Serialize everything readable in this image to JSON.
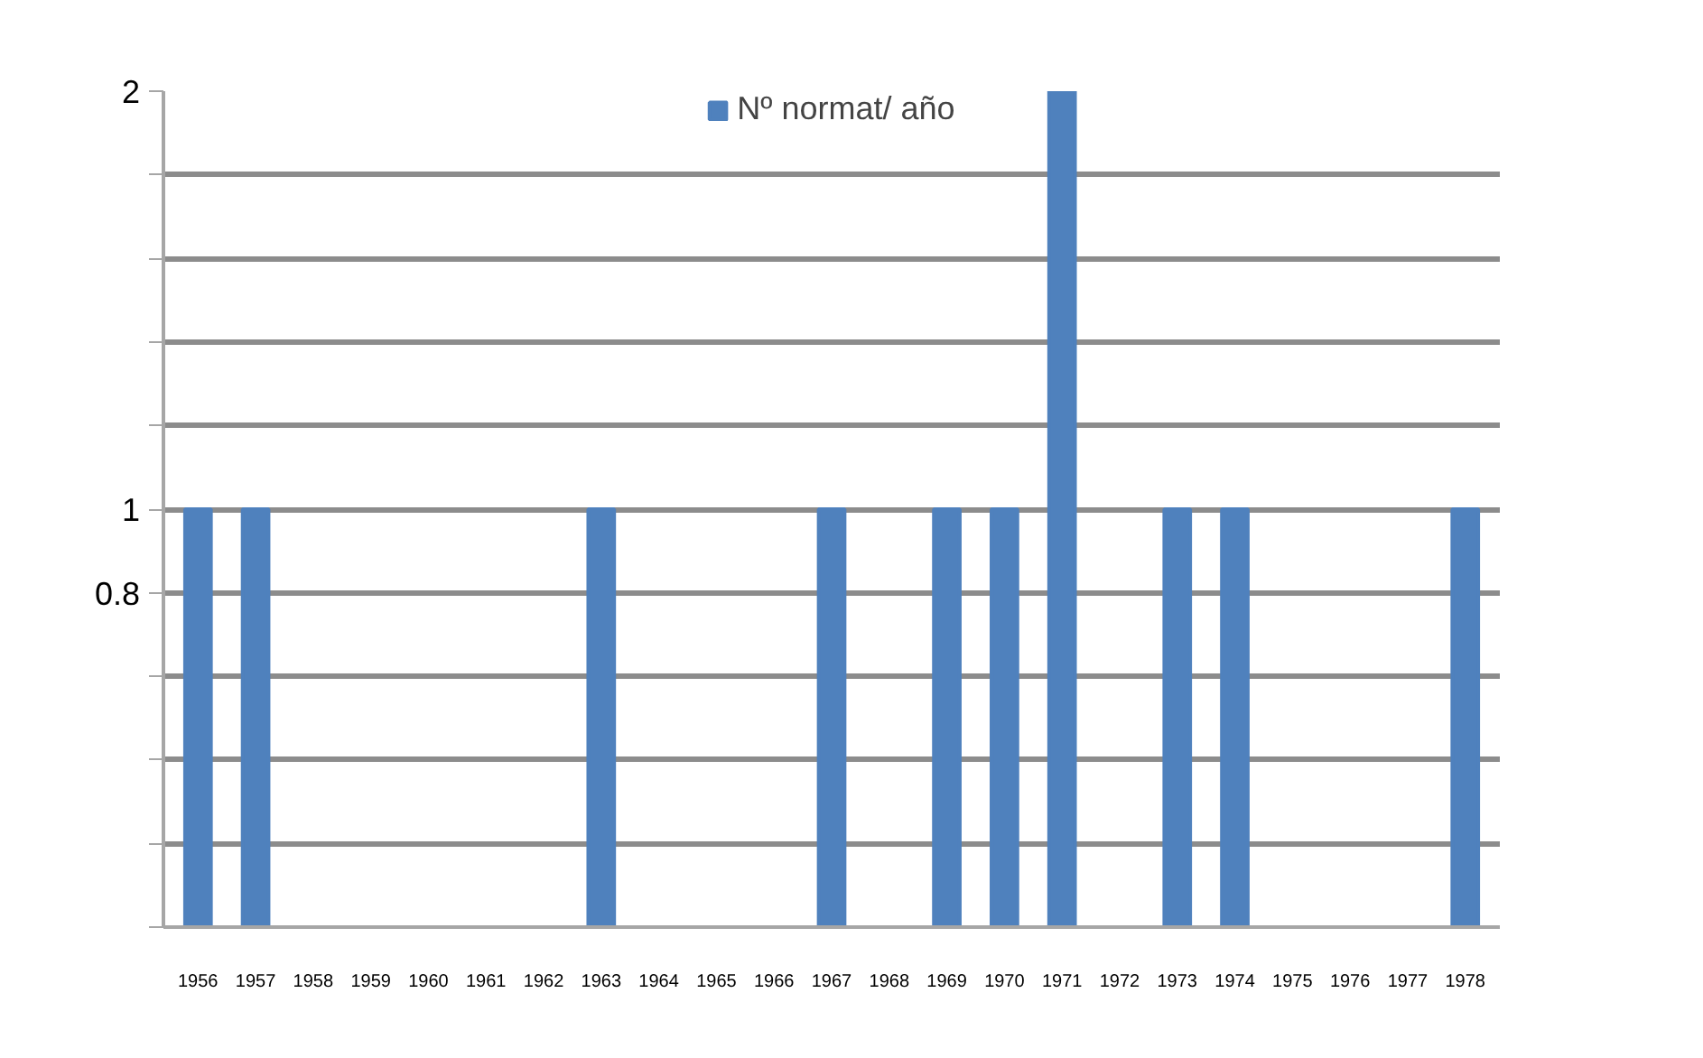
{
  "chart_data": {
    "type": "bar",
    "categories": [
      "1956",
      "1957",
      "1958",
      "1959",
      "1960",
      "1961",
      "1962",
      "1963",
      "1964",
      "1965",
      "1966",
      "1967",
      "1968",
      "1969",
      "1970",
      "1971",
      "1972",
      "1973",
      "1974",
      "1975",
      "1976",
      "1977",
      "1978"
    ],
    "series": [
      {
        "name": "Nº normat/ año",
        "color": "#4f81bd",
        "values": [
          1,
          1,
          0,
          0,
          0,
          0,
          0,
          1,
          0,
          0,
          0,
          1,
          0,
          1,
          1,
          2,
          0,
          1,
          1,
          0,
          0,
          0,
          1
        ]
      }
    ],
    "ylim": [
      0,
      2
    ],
    "yticks": [
      {
        "value": 0,
        "label": null
      },
      {
        "value": 0.2,
        "label": null
      },
      {
        "value": 0.4,
        "label": null
      },
      {
        "value": 0.6,
        "label": null
      },
      0.8,
      1,
      {
        "value": 1.2,
        "label": null
      },
      {
        "value": 1.4,
        "label": null
      },
      {
        "value": 1.6,
        "label": null
      },
      {
        "value": 1.8,
        "label": null
      },
      2
    ],
    "grid": "y",
    "legend": "top"
  }
}
